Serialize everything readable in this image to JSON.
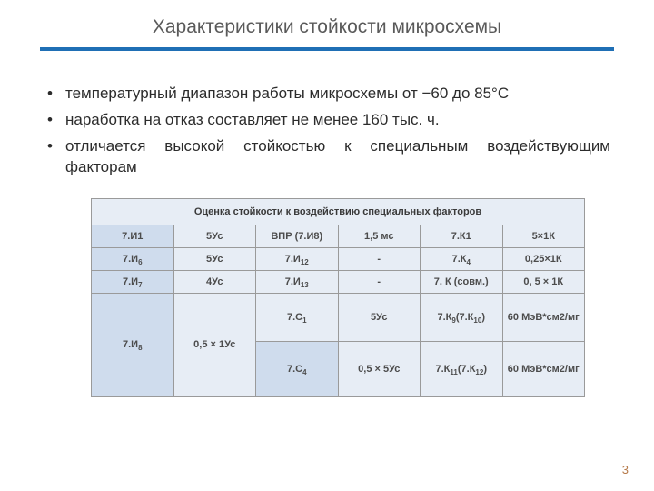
{
  "title": "Характеристики стойкости микросхемы",
  "bullets": [
    "температурный диапазон работы микросхемы от −60 до 85°С",
    "наработка на отказ составляет не менее 160 тыс. ч.",
    "отличается высокой стойкостью к специальным воздействующим факторам"
  ],
  "table": {
    "caption": "Оценка стойкости к воздействию специальных факторов",
    "rows": [
      {
        "c0": "7.И1",
        "c1": "5Ус",
        "c2": "ВПР (7.И8)",
        "c3": "1,5 мс",
        "c4": "7.К1",
        "c5": "5×1К"
      },
      {
        "c0": "7.И6",
        "c1": "5Ус",
        "c2": "7.И12",
        "c3": "-",
        "c4": "7.К4",
        "c5": "0,25×1К"
      },
      {
        "c0": "7.И7",
        "c1": "4Ус",
        "c2": "7.И13",
        "c3": "-",
        "c4": "7. К (совм.)",
        "c5": "0, 5 × 1К"
      },
      {
        "c0": "7.И8",
        "c1": "0,5 × 1Ус",
        "c2": "7.С1",
        "c3": "5Ус",
        "c4": "7.К9(7.К10)",
        "c5": "60 МэВ*см2/мг"
      },
      {
        "c2": "7.С4",
        "c3": "0,5 × 5Ус",
        "c4": "7.К11(7.К12)",
        "c5": "60 МэВ*см2/мг"
      }
    ]
  },
  "page_number": "3",
  "colors": {
    "rule": "#1f6fb5",
    "cell_bg": "#e7edf5",
    "rowhead_bg": "#cfdced",
    "border": "#9a9a9a",
    "text": "#333333",
    "pagenum": "#b67a4a"
  }
}
